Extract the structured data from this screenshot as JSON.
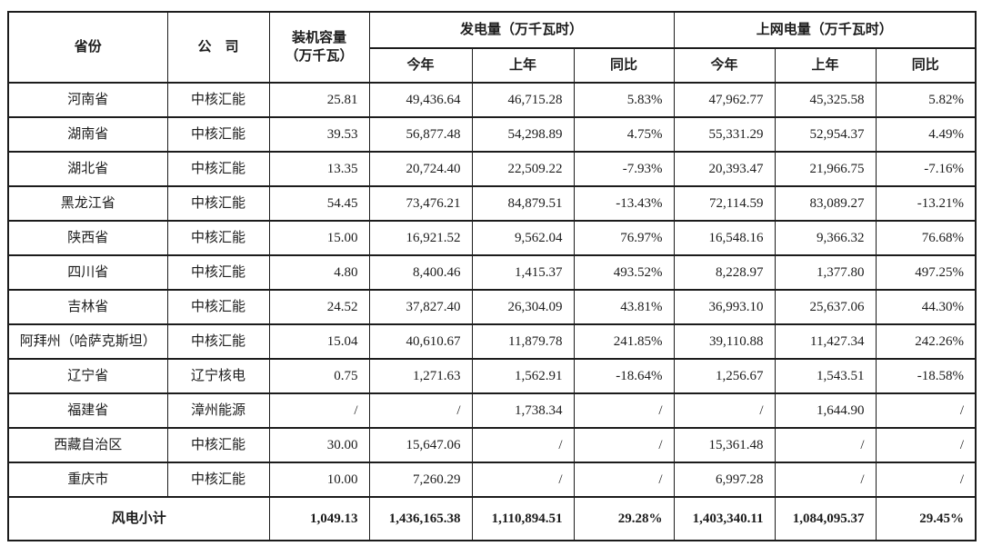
{
  "table": {
    "headers": {
      "province": "省份",
      "company": "公　司",
      "capacity_line1": "装机容量",
      "capacity_line2": "（万千瓦）",
      "generation_group": "发电量（万千瓦时）",
      "ongrid_group": "上网电量（万千瓦时）",
      "this_year": "今年",
      "last_year": "上年",
      "yoy": "同比"
    },
    "rows": [
      {
        "province": "河南省",
        "company": "中核汇能",
        "capacity": "25.81",
        "gen_this": "49,436.64",
        "gen_last": "46,715.28",
        "gen_yoy": "5.83%",
        "grid_this": "47,962.77",
        "grid_last": "45,325.58",
        "grid_yoy": "5.82%"
      },
      {
        "province": "湖南省",
        "company": "中核汇能",
        "capacity": "39.53",
        "gen_this": "56,877.48",
        "gen_last": "54,298.89",
        "gen_yoy": "4.75%",
        "grid_this": "55,331.29",
        "grid_last": "52,954.37",
        "grid_yoy": "4.49%"
      },
      {
        "province": "湖北省",
        "company": "中核汇能",
        "capacity": "13.35",
        "gen_this": "20,724.40",
        "gen_last": "22,509.22",
        "gen_yoy": "-7.93%",
        "grid_this": "20,393.47",
        "grid_last": "21,966.75",
        "grid_yoy": "-7.16%"
      },
      {
        "province": "黑龙江省",
        "company": "中核汇能",
        "capacity": "54.45",
        "gen_this": "73,476.21",
        "gen_last": "84,879.51",
        "gen_yoy": "-13.43%",
        "grid_this": "72,114.59",
        "grid_last": "83,089.27",
        "grid_yoy": "-13.21%"
      },
      {
        "province": "陕西省",
        "company": "中核汇能",
        "capacity": "15.00",
        "gen_this": "16,921.52",
        "gen_last": "9,562.04",
        "gen_yoy": "76.97%",
        "grid_this": "16,548.16",
        "grid_last": "9,366.32",
        "grid_yoy": "76.68%"
      },
      {
        "province": "四川省",
        "company": "中核汇能",
        "capacity": "4.80",
        "gen_this": "8,400.46",
        "gen_last": "1,415.37",
        "gen_yoy": "493.52%",
        "grid_this": "8,228.97",
        "grid_last": "1,377.80",
        "grid_yoy": "497.25%"
      },
      {
        "province": "吉林省",
        "company": "中核汇能",
        "capacity": "24.52",
        "gen_this": "37,827.40",
        "gen_last": "26,304.09",
        "gen_yoy": "43.81%",
        "grid_this": "36,993.10",
        "grid_last": "25,637.06",
        "grid_yoy": "44.30%"
      },
      {
        "province": "阿拜州（哈萨克斯坦）",
        "company": "中核汇能",
        "capacity": "15.04",
        "gen_this": "40,610.67",
        "gen_last": "11,879.78",
        "gen_yoy": "241.85%",
        "grid_this": "39,110.88",
        "grid_last": "11,427.34",
        "grid_yoy": "242.26%"
      },
      {
        "province": "辽宁省",
        "company": "辽宁核电",
        "capacity": "0.75",
        "gen_this": "1,271.63",
        "gen_last": "1,562.91",
        "gen_yoy": "-18.64%",
        "grid_this": "1,256.67",
        "grid_last": "1,543.51",
        "grid_yoy": "-18.58%"
      },
      {
        "province": "福建省",
        "company": "漳州能源",
        "capacity": "/",
        "gen_this": "/",
        "gen_last": "1,738.34",
        "gen_yoy": "/",
        "grid_this": "/",
        "grid_last": "1,644.90",
        "grid_yoy": "/"
      },
      {
        "province": "西藏自治区",
        "company": "中核汇能",
        "capacity": "30.00",
        "gen_this": "15,647.06",
        "gen_last": "/",
        "gen_yoy": "/",
        "grid_this": "15,361.48",
        "grid_last": "/",
        "grid_yoy": "/"
      },
      {
        "province": "重庆市",
        "company": "中核汇能",
        "capacity": "10.00",
        "gen_this": "7,260.29",
        "gen_last": "/",
        "gen_yoy": "/",
        "grid_this": "6,997.28",
        "grid_last": "/",
        "grid_yoy": "/"
      }
    ],
    "total": {
      "label": "风电小计",
      "capacity": "1,049.13",
      "gen_this": "1,436,165.38",
      "gen_last": "1,110,894.51",
      "gen_yoy": "29.28%",
      "grid_this": "1,403,340.11",
      "grid_last": "1,084,095.37",
      "grid_yoy": "29.45%"
    }
  }
}
